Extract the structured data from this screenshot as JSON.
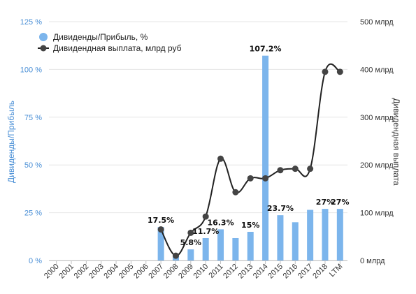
{
  "chart_data": {
    "type": "bar",
    "categories": [
      "2000",
      "2001",
      "2002",
      "2003",
      "2004",
      "2005",
      "2006",
      "2007",
      "2008",
      "2009",
      "2010",
      "2011",
      "2012",
      "2013",
      "2014",
      "2015",
      "2016",
      "2017",
      "2018",
      "LTM"
    ],
    "series": [
      {
        "name": "Дивиденды/Прибыль, %",
        "type": "bar",
        "axis": "left",
        "values": [
          0,
          0,
          0,
          0,
          0,
          0,
          0,
          17.5,
          3.0,
          5.8,
          11.7,
          16.3,
          11.7,
          15,
          107.2,
          23.7,
          20.0,
          26.5,
          27,
          27
        ],
        "labels": [
          "",
          "",
          "",
          "",
          "",
          "",
          "",
          "17.5%",
          "",
          "5.8%",
          "11.7%",
          "16.3%",
          "",
          "15%",
          "107.2%",
          "23.7%",
          "",
          "",
          "27%",
          "27%"
        ]
      },
      {
        "name": "Дивидендная выплата, млрд руб",
        "type": "line",
        "axis": "right",
        "values": [
          null,
          null,
          null,
          null,
          null,
          null,
          null,
          65,
          10,
          58,
          92,
          213,
          143,
          172,
          172,
          189,
          192,
          192,
          395,
          395
        ]
      }
    ],
    "y_left": {
      "label": "Дивиденды/Прибыль",
      "min": 0,
      "max": 125,
      "ticks": [
        0,
        25,
        50,
        75,
        100,
        125
      ],
      "tick_labels": [
        "0 %",
        "25 %",
        "50 %",
        "75 %",
        "100 %",
        "125 %"
      ]
    },
    "y_right": {
      "label": "Дивидендная выплата",
      "min": 0,
      "max": 500,
      "ticks": [
        0,
        100,
        200,
        300,
        400,
        500
      ],
      "tick_labels": [
        "0 млрд",
        "100 млрд",
        "200 млрд",
        "300 млрд",
        "400 млрд",
        "500 млрд"
      ]
    },
    "grid": true,
    "legend_position": "top-left",
    "colors": {
      "bar": "#7cb5ec",
      "line": "#222222",
      "marker": "#444444",
      "left_axis": "#4a8fd6"
    }
  }
}
